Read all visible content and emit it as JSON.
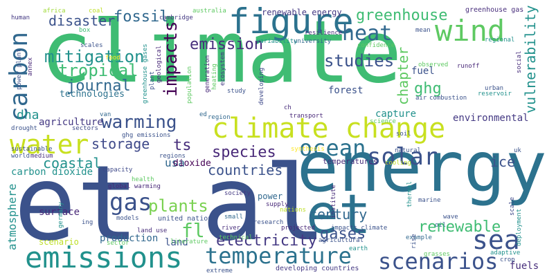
{
  "word_cloud": {
    "words": [
      {
        "text": "climate",
        "color": "#3fbc73"
      },
      {
        "text": "et al",
        "color": "#3b528b"
      },
      {
        "text": "energy",
        "color": "#2c728e"
      },
      {
        "text": "et",
        "color": "#2c728e"
      },
      {
        "text": "climate change",
        "color": "#c8e020"
      },
      {
        "text": "emissions",
        "color": "#21918c"
      },
      {
        "text": "water",
        "color": "#c8e020"
      },
      {
        "text": "figure",
        "color": "#2c728e"
      },
      {
        "text": "wind",
        "color": "#5ec962"
      },
      {
        "text": "sea",
        "color": "#3b528b"
      },
      {
        "text": "ocean",
        "color": "#2c728e"
      },
      {
        "text": "temperature",
        "color": "#2c728e"
      },
      {
        "text": "scenarios",
        "color": "#3b528b"
      },
      {
        "text": "heat",
        "color": "#31688e"
      },
      {
        "text": "carbon",
        "color": "#31688e"
      },
      {
        "text": "solar",
        "color": "#3b528b"
      },
      {
        "text": "greenhouse",
        "color": "#3fbc73"
      },
      {
        "text": "mitigation",
        "color": "#21918c"
      },
      {
        "text": "disaster",
        "color": "#3b528b"
      },
      {
        "text": "fossil",
        "color": "#31688e"
      },
      {
        "text": "impacts",
        "color": "#440154"
      },
      {
        "text": "emission",
        "color": "#472d7b"
      },
      {
        "text": "warming",
        "color": "#3b528b"
      },
      {
        "text": "tropical",
        "color": "#3fbc73"
      },
      {
        "text": "journal",
        "color": "#31688e"
      },
      {
        "text": "studies",
        "color": "#3b528b"
      },
      {
        "text": "ghg",
        "color": "#3fbc73"
      },
      {
        "text": "chapter",
        "color": "#5ec962"
      },
      {
        "text": "vulnerability",
        "color": "#21918c"
      },
      {
        "text": "gas",
        "color": "#3b528b"
      },
      {
        "text": "plants",
        "color": "#7ad151"
      },
      {
        "text": "fl",
        "color": "#5ec962"
      },
      {
        "text": "electricity",
        "color": "#443983"
      },
      {
        "text": "renewable",
        "color": "#3fbc73"
      },
      {
        "text": "gases",
        "color": "#3b528b"
      },
      {
        "text": "century",
        "color": "#31688e"
      },
      {
        "text": "countries",
        "color": "#3b528b"
      },
      {
        "text": "species",
        "color": "#482878"
      },
      {
        "text": "coastal",
        "color": "#21918c"
      },
      {
        "text": "storage",
        "color": "#3e4989"
      },
      {
        "text": "usa",
        "color": "#31688e"
      },
      {
        "text": "ts",
        "color": "#472d7b"
      },
      {
        "text": "ice",
        "color": "#3b528b"
      },
      {
        "text": "dna",
        "color": "#21918c"
      },
      {
        "text": "atmosphere",
        "color": "#21918c"
      },
      {
        "text": "fuel",
        "color": "#3b528b"
      },
      {
        "text": "forest",
        "color": "#3b528b"
      },
      {
        "text": "capture",
        "color": "#21918c"
      },
      {
        "text": "technologies",
        "color": "#2c728e"
      },
      {
        "text": "agriculture",
        "color": "#443983"
      },
      {
        "text": "environmental",
        "color": "#443983"
      },
      {
        "text": "carbon dioxide",
        "color": "#21918c"
      },
      {
        "text": "dioxide",
        "color": "#440154"
      },
      {
        "text": "surface",
        "color": "#482878"
      },
      {
        "text": "production",
        "color": "#31688e"
      },
      {
        "text": "land",
        "color": "#3b528b"
      },
      {
        "text": "scenario",
        "color": "#bddf26"
      },
      {
        "text": "fuels",
        "color": "#472d7b"
      },
      {
        "text": "renewable energy",
        "color": "#443983"
      },
      {
        "text": "greenhouse gas",
        "color": "#472d7b"
      },
      {
        "text": "temperatures",
        "color": "#472d7b"
      },
      {
        "text": "power",
        "color": "#31688e"
      },
      {
        "text": "united nations",
        "color": "#3b528b"
      },
      {
        "text": "developing countries",
        "color": "#443983"
      },
      {
        "text": "human",
        "color": "#443983"
      },
      {
        "text": "africa",
        "color": "#a0da39"
      },
      {
        "text": "coal",
        "color": "#bddf26"
      },
      {
        "text": "australia",
        "color": "#5ec962"
      },
      {
        "text": "cambridge",
        "color": "#443983"
      },
      {
        "text": "box",
        "color": "#3fbc73"
      },
      {
        "text": "resilience",
        "color": "#472d7b"
      },
      {
        "text": "mean",
        "color": "#3b528b"
      },
      {
        "text": "variability",
        "color": "#21918c"
      },
      {
        "text": "university",
        "color": "#31688e"
      },
      {
        "text": "confidence",
        "color": "#5ec962"
      },
      {
        "text": "regional",
        "color": "#21918c"
      },
      {
        "text": "scales",
        "color": "#3b528b"
      },
      {
        "text": "social",
        "color": "#472d7b"
      },
      {
        "text": "food",
        "color": "#fde725"
      },
      {
        "text": "observed",
        "color": "#5ec962"
      },
      {
        "text": "runoff",
        "color": "#482878"
      },
      {
        "text": "urban",
        "color": "#3b528b"
      },
      {
        "text": "reservoir",
        "color": "#21918c"
      },
      {
        "text": "air",
        "color": "#3b528b"
      },
      {
        "text": "combustion",
        "color": "#3b528b"
      },
      {
        "text": "transport",
        "color": "#482878"
      },
      {
        "text": "science",
        "color": "#5ec962"
      },
      {
        "text": "soil",
        "color": "#3b528b"
      },
      {
        "text": "ch",
        "color": "#472d7b"
      },
      {
        "text": "region",
        "color": "#31688e"
      },
      {
        "text": "ed",
        "color": "#31688e"
      },
      {
        "text": "study",
        "color": "#3b528b"
      },
      {
        "text": "population",
        "color": "#5ec962"
      },
      {
        "text": "generation",
        "color": "#482878"
      },
      {
        "text": "heating",
        "color": "#5ec962"
      },
      {
        "text": "ecosystem",
        "color": "#443983"
      },
      {
        "text": "developing",
        "color": "#3e4989"
      },
      {
        "text": "drought",
        "color": "#3b528b"
      },
      {
        "text": "sectors",
        "color": "#3e4989"
      },
      {
        "text": "ghg emissions",
        "color": "#3b528b"
      },
      {
        "text": "van",
        "color": "#31688e"
      },
      {
        "text": "sustainable",
        "color": "#3b528b"
      },
      {
        "text": "world",
        "color": "#3b528b"
      },
      {
        "text": "medium",
        "color": "#472d7b"
      },
      {
        "text": "regions",
        "color": "#3b528b"
      },
      {
        "text": "synthesis",
        "color": "#fde725"
      },
      {
        "text": "natural",
        "color": "#3b528b"
      },
      {
        "text": "uk",
        "color": "#3b528b"
      },
      {
        "text": "cooling",
        "color": "#bddf26"
      },
      {
        "text": "capacity",
        "color": "#3e4989"
      },
      {
        "text": "health",
        "color": "#5ec962"
      },
      {
        "text": "global warming",
        "color": "#482878"
      },
      {
        "text": "society",
        "color": "#443983"
      },
      {
        "text": "la",
        "color": "#3b528b"
      },
      {
        "text": "small",
        "color": "#31688e"
      },
      {
        "text": "nations",
        "color": "#bddf26"
      },
      {
        "text": "projected",
        "color": "#482878"
      },
      {
        "text": "impacts climate",
        "color": "#3b528b"
      },
      {
        "text": "institute",
        "color": "#472d7b"
      },
      {
        "text": "supply",
        "color": "#482878"
      },
      {
        "text": "thermal",
        "color": "#21918c"
      },
      {
        "text": "marine",
        "color": "#3b528b"
      },
      {
        "text": "wave",
        "color": "#3b528b"
      },
      {
        "text": "oil",
        "color": "#31688e"
      },
      {
        "text": "scale",
        "color": "#3e4989"
      },
      {
        "text": "deployment",
        "color": "#21918c"
      },
      {
        "text": "models",
        "color": "#3b528b"
      },
      {
        "text": "land use",
        "color": "#472d7b"
      },
      {
        "text": "river",
        "color": "#472d7b"
      },
      {
        "text": "technical",
        "color": "#5ec962"
      },
      {
        "text": "research",
        "color": "#3b528b"
      },
      {
        "text": "agricultural",
        "color": "#3b528b"
      },
      {
        "text": "literature",
        "color": "#5ec962"
      },
      {
        "text": "sector",
        "color": "#5ec962"
      },
      {
        "text": "earth",
        "color": "#21918c"
      },
      {
        "text": "example",
        "color": "#31688e"
      },
      {
        "text": "adaptive",
        "color": "#21918c"
      },
      {
        "text": "crop",
        "color": "#3b528b"
      },
      {
        "text": "extreme",
        "color": "#3b528b"
      },
      {
        "text": "ing",
        "color": "#3b528b"
      },
      {
        "text": "germany",
        "color": "#21918c"
      },
      {
        "text": "grasses",
        "color": "#5ec962"
      },
      {
        "text": "rise",
        "color": "#3b528b"
      },
      {
        "text": "power plant",
        "color": "#3b528b"
      },
      {
        "text": "annex",
        "color": "#482878"
      },
      {
        "text": "plant",
        "color": "#3b528b"
      },
      {
        "text": "geological",
        "color": "#482878"
      },
      {
        "text": "greenhouse gases",
        "color": "#21918c"
      }
    ]
  }
}
